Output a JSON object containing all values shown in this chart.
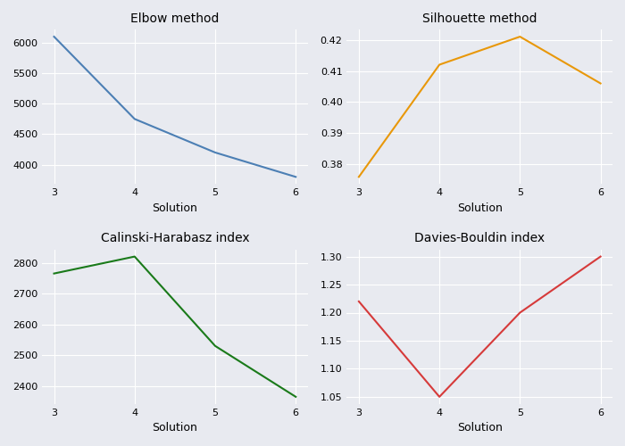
{
  "x": [
    3,
    4,
    5,
    6
  ],
  "elbow": {
    "title": "Elbow method",
    "y": [
      6100,
      4750,
      4200,
      3800
    ],
    "color": "#4c7fb4",
    "xlabel": "Solution"
  },
  "silhouette": {
    "title": "Silhouette method",
    "y": [
      0.376,
      0.412,
      0.421,
      0.406
    ],
    "color": "#e8980a",
    "xlabel": "Solution"
  },
  "calinski": {
    "title": "Calinski-Harabasz index",
    "y": [
      2765,
      2820,
      2530,
      2365
    ],
    "color": "#1a7a1a",
    "xlabel": "Solution"
  },
  "davies": {
    "title": "Davies-Bouldin index",
    "y": [
      1.22,
      1.05,
      1.2,
      1.3
    ],
    "color": "#d63a3a",
    "xlabel": "Solution"
  },
  "bg_color": "#e8eaf0",
  "fig_bg": "#e8eaf0"
}
